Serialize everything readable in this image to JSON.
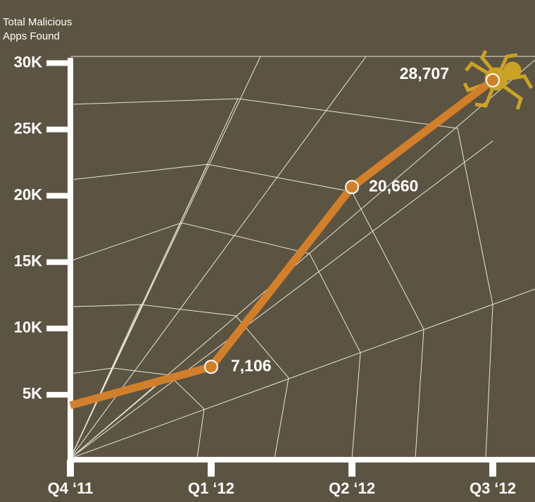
{
  "chart_data": {
    "type": "line",
    "y_label": "Total Malicious Apps Found",
    "categories": [
      "Q4 ‘11",
      "Q1 ‘12",
      "Q2 ‘12",
      "Q3 ‘12"
    ],
    "series": [
      {
        "name": "Total Malicious Apps Found",
        "color": "#d27f2c",
        "values": [
          4200,
          7106,
          20660,
          28707
        ],
        "value_labels": [
          null,
          "7,106",
          "20,660",
          "28,707"
        ]
      }
    ],
    "ylim": [
      0,
      30400
    ],
    "yticks": [
      {
        "value": 5000,
        "label": "5K"
      },
      {
        "value": 10000,
        "label": "10K"
      },
      {
        "value": 15000,
        "label": "15K"
      },
      {
        "value": 20000,
        "label": "20K"
      },
      {
        "value": 25000,
        "label": "25K"
      },
      {
        "value": 30000,
        "label": "30K"
      }
    ],
    "grid": false
  }
}
